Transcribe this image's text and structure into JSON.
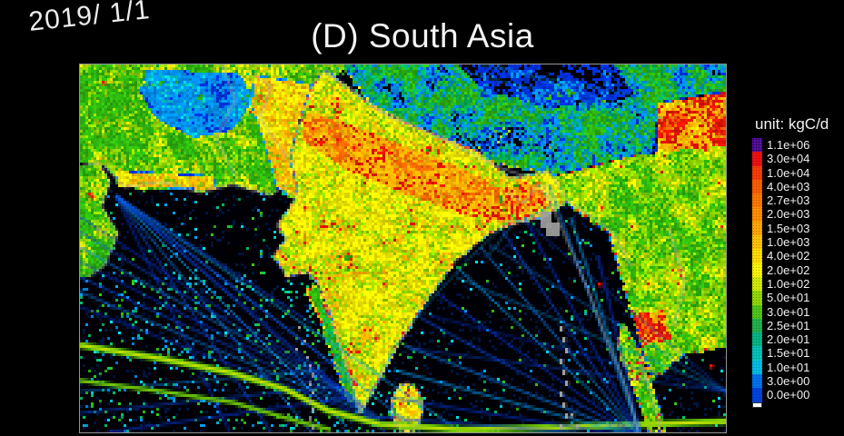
{
  "page": {
    "background": "#000000"
  },
  "header": {
    "date_label": "2019/ 1/1",
    "title": "(D) South Asia"
  },
  "legend": {
    "unit_label": "unit: kgC/d",
    "entries": [
      {
        "label": "1.1e+06",
        "color": "#5c11a6"
      },
      {
        "label": "3.0e+04",
        "color": "#ec1013"
      },
      {
        "label": "1.0e+04",
        "color": "#f63b06"
      },
      {
        "label": "4.0e+03",
        "color": "#fb5c02"
      },
      {
        "label": "2.7e+03",
        "color": "#fe7600"
      },
      {
        "label": "2.0e+03",
        "color": "#ff8d00"
      },
      {
        "label": "1.5e+03",
        "color": "#ffa600"
      },
      {
        "label": "1.0e+03",
        "color": "#ffc100"
      },
      {
        "label": "4.0e+02",
        "color": "#ffdc00"
      },
      {
        "label": "2.0e+02",
        "color": "#fcf400"
      },
      {
        "label": "1.0e+02",
        "color": "#cfe800"
      },
      {
        "label": "5.0e+01",
        "color": "#8ed600"
      },
      {
        "label": "3.0e+01",
        "color": "#4ec417"
      },
      {
        "label": "2.5e+01",
        "color": "#1fb04b"
      },
      {
        "label": "2.0e+01",
        "color": "#04b383"
      },
      {
        "label": "1.5e+01",
        "color": "#00c2b8"
      },
      {
        "label": "1.0e+01",
        "color": "#00bce4"
      },
      {
        "label": "3.0e+00",
        "color": "#0070ee"
      },
      {
        "label": "0.0e+00",
        "color": "#0042dc"
      }
    ],
    "below_scale_color": "#ffffff"
  },
  "chart_data": {
    "type": "heatmap",
    "title": "(D) South Asia",
    "date": "2019/ 1/1",
    "unit": "kgC/d",
    "colorbar_ticks": [
      "1.1e+06",
      "3.0e+04",
      "1.0e+04",
      "4.0e+03",
      "2.7e+03",
      "2.0e+03",
      "1.5e+03",
      "1.0e+03",
      "4.0e+02",
      "2.0e+02",
      "1.0e+02",
      "5.0e+01",
      "3.0e+01",
      "2.5e+01",
      "2.0e+01",
      "1.5e+01",
      "1.0e+01",
      "3.0e+00",
      "0.0e+00"
    ],
    "scale_note": "discrete rainbow scale: purple=max, red/orange/yellow=high, green=moderate, cyan/blue=low, black=zero",
    "visible_features": [
      "red/orange high-emission band along Indo-Gangetic Plain and Bangladesh delta",
      "yellow Indian subcontinent speckled with red city hotspots",
      "green land over Iran, Afghanistan, Himalaya foothills, Myanmar, Thailand",
      "blue low-value desert in central Iran and blue/black Tibetan plateau",
      "black ocean crossed by blue ship-track lines in Arabian Sea and Bay of Bengal",
      "thick yellow-green shipping lane passing south of India and Sri Lanka",
      "grey coastlines, national borders and island chains (Maldives, Andaman)"
    ]
  }
}
